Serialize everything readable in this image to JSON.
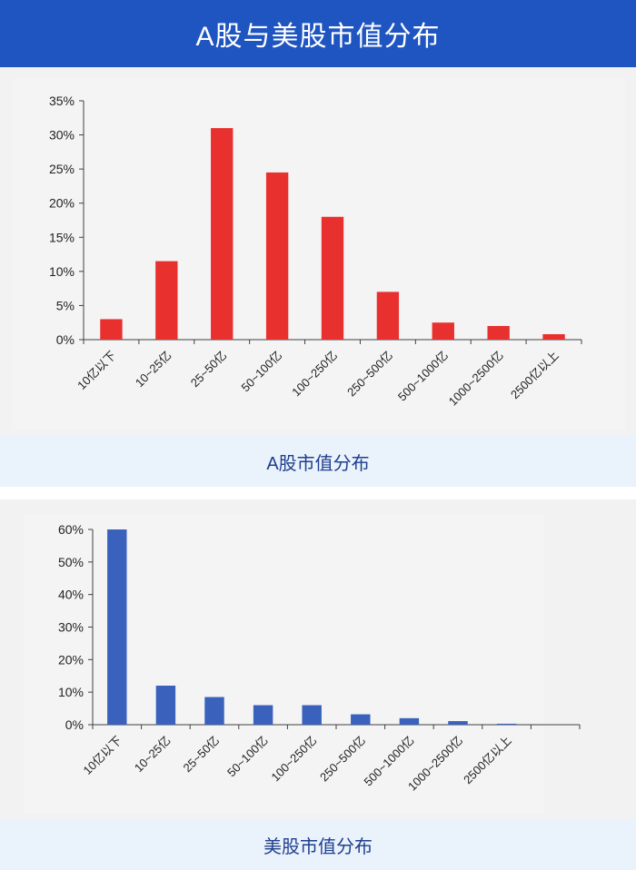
{
  "header": {
    "title": "A股与美股市值分布"
  },
  "captions": {
    "a": "A股市值分布",
    "us": "美股市值分布"
  },
  "chart_data": [
    {
      "type": "bar",
      "categories": [
        "10亿以下",
        "10~25亿",
        "25~50亿",
        "50~100亿",
        "100~250亿",
        "250~500亿",
        "500~1000亿",
        "1000~2500亿",
        "2500亿以上"
      ],
      "values": [
        3.0,
        11.5,
        31.0,
        24.5,
        18.0,
        7.0,
        2.5,
        2.0,
        0.8
      ],
      "yticks": [
        "0%",
        "5%",
        "10%",
        "15%",
        "20%",
        "25%",
        "30%",
        "35%"
      ],
      "ylim": [
        0,
        35
      ],
      "color": "#e8312f"
    },
    {
      "type": "bar",
      "categories": [
        "10亿以下",
        "10~25亿",
        "25~50亿",
        "50~100亿",
        "100~250亿",
        "250~500亿",
        "500~1000亿",
        "1000~2500亿",
        "2500亿以上"
      ],
      "values": [
        60.0,
        12.0,
        8.5,
        6.0,
        6.0,
        3.2,
        2.0,
        1.1,
        0.3
      ],
      "yticks": [
        "0%",
        "10%",
        "20%",
        "30%",
        "40%",
        "50%",
        "60%"
      ],
      "ylim": [
        0,
        60
      ],
      "color": "#3a62bc"
    }
  ]
}
